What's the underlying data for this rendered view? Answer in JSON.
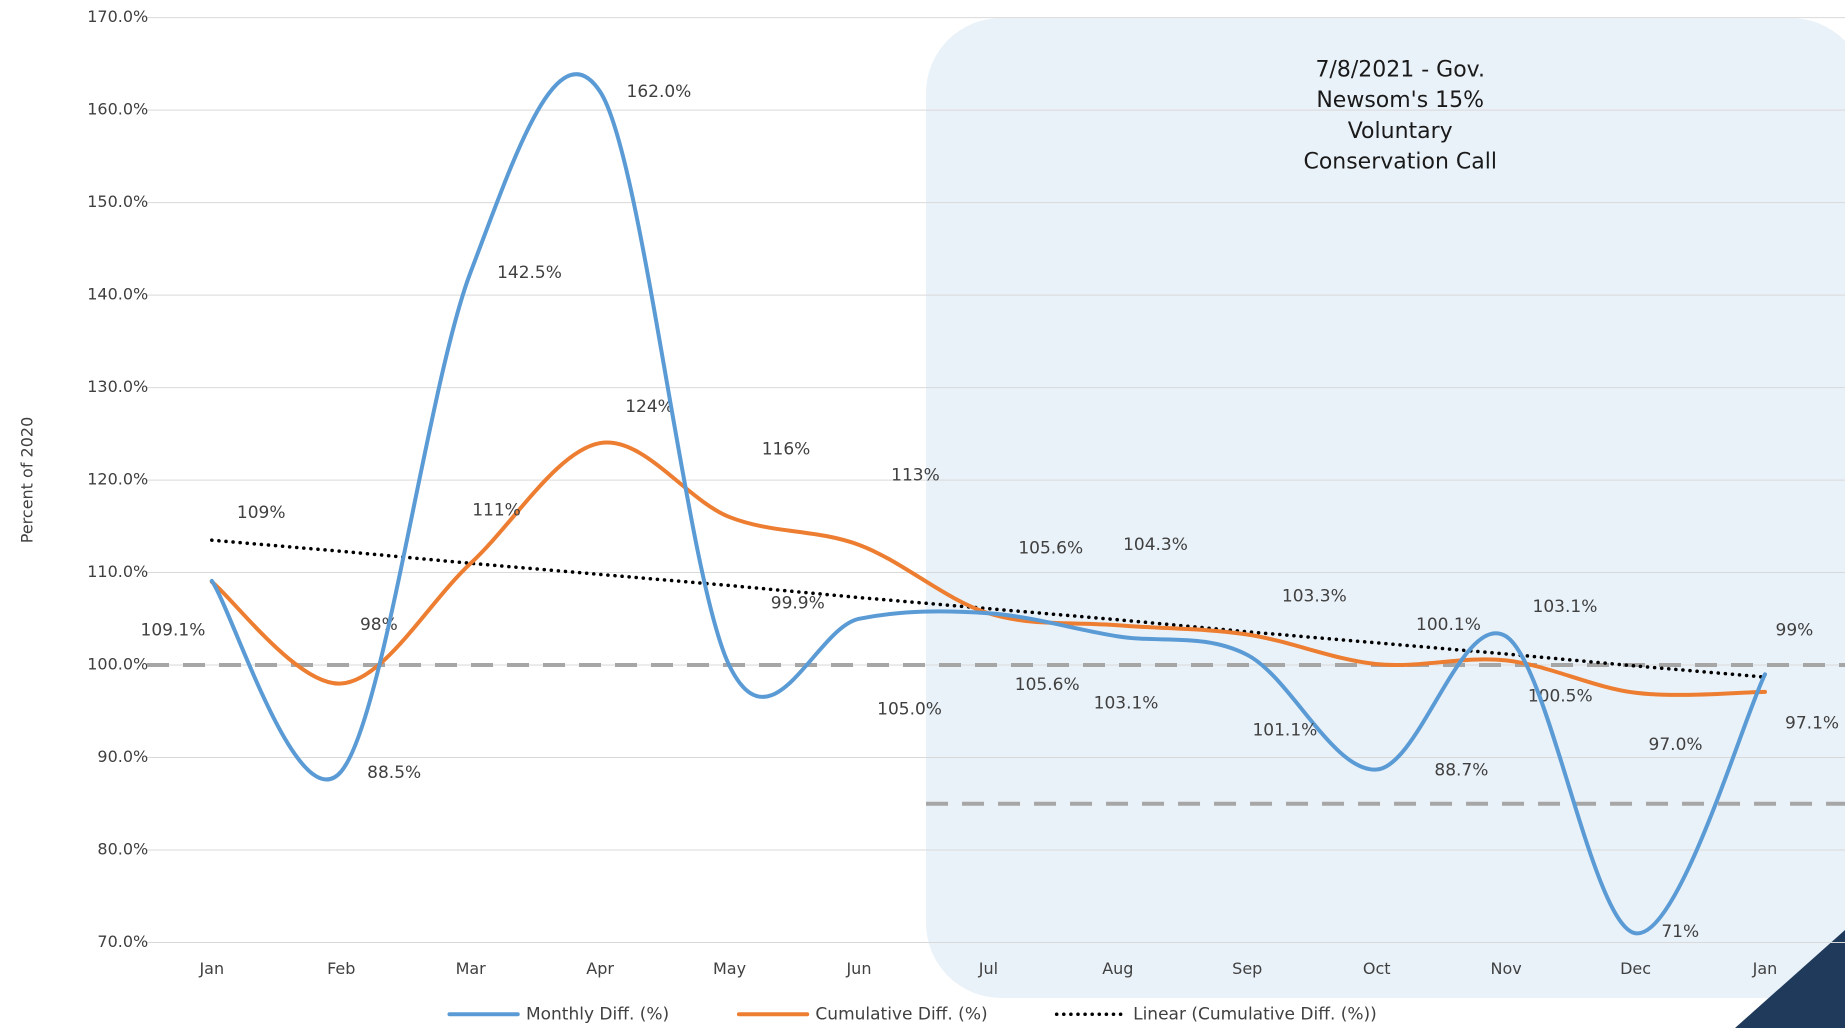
{
  "chart_data": {
    "type": "line",
    "ylabel": "Percent of 2020",
    "annotation": [
      "7/8/2021 - Gov.",
      "Newsom's 15%",
      "Voluntary",
      "Conservation Call"
    ],
    "categories": [
      "Jan",
      "Feb",
      "Mar",
      "Apr",
      "May",
      "Jun",
      "Jul",
      "Aug",
      "Sep",
      "Oct",
      "Nov",
      "Dec",
      "Jan"
    ],
    "series": [
      {
        "name": "Monthly Diff. (%)",
        "color": "#5b9bd5",
        "style": "solid",
        "values": [
          109.1,
          88.5,
          142.5,
          162.0,
          99.9,
          105.0,
          105.6,
          103.1,
          101.1,
          88.7,
          103.1,
          71,
          99
        ],
        "value_labels": [
          "109.1%",
          "88.5%",
          "142.5%",
          "162.0%",
          "99.9%",
          "105.0%",
          "105.6%",
          "103.1%",
          "101.1%",
          "88.7%",
          "103.1%",
          "71%",
          "99%"
        ]
      },
      {
        "name": "Cumulative Diff. (%)",
        "color": "#ed7d31",
        "style": "solid",
        "values": [
          109,
          98,
          111,
          124,
          116,
          113,
          105.6,
          104.3,
          103.3,
          100.1,
          100.5,
          97.0,
          97.1
        ],
        "value_labels": [
          "109%",
          "98%",
          "111%",
          "124%",
          "116%",
          "113%",
          "105.6%",
          "104.3%",
          "103.3%",
          "100.1%",
          "100.5%",
          "97.0%",
          "97.1%"
        ]
      },
      {
        "name": "Linear (Cumulative Diff. (%))",
        "color": "#000000",
        "style": "dotted",
        "values": [
          113.5,
          112.3,
          111.0,
          109.8,
          108.6,
          107.3,
          106.1,
          104.9,
          103.6,
          102.4,
          101.2,
          99.9,
          98.7
        ]
      }
    ],
    "reference_lines": [
      {
        "value": 100,
        "color": "#a6a6a6"
      },
      {
        "value": 85,
        "color": "#a6a6a6"
      }
    ],
    "ylim": [
      70,
      170
    ],
    "yticks": [
      {
        "value": 70,
        "label": "70.0%"
      },
      {
        "value": 80,
        "label": "80.0%"
      },
      {
        "value": 90,
        "label": "90.0%"
      },
      {
        "value": 100,
        "label": "100.0%"
      },
      {
        "value": 110,
        "label": "110.0%"
      },
      {
        "value": 120,
        "label": "120.0%"
      },
      {
        "value": 130,
        "label": "130.0%"
      },
      {
        "value": 140,
        "label": "140.0%"
      },
      {
        "value": 150,
        "label": "150.0%"
      },
      {
        "value": 160,
        "label": "160.0%"
      },
      {
        "value": 170,
        "label": "170.0%"
      }
    ],
    "grid": true,
    "legend": "bottom"
  }
}
